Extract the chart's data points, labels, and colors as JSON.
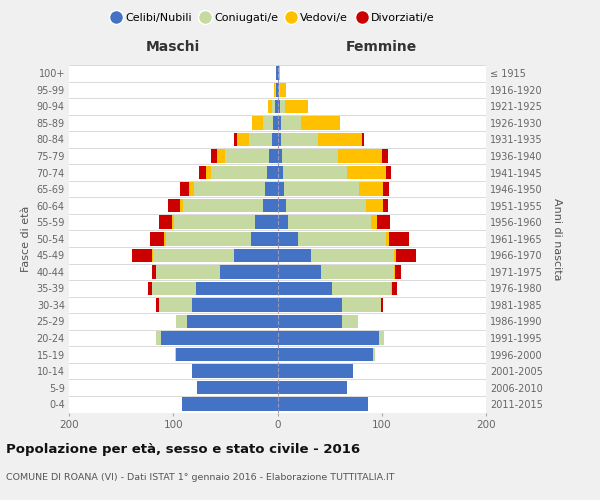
{
  "age_groups": [
    "100+",
    "95-99",
    "90-94",
    "85-89",
    "80-84",
    "75-79",
    "70-74",
    "65-69",
    "60-64",
    "55-59",
    "50-54",
    "45-49",
    "40-44",
    "35-39",
    "30-34",
    "25-29",
    "20-24",
    "15-19",
    "10-14",
    "5-9",
    "0-4"
  ],
  "birth_years": [
    "≤ 1915",
    "1916-1920",
    "1921-1925",
    "1926-1930",
    "1931-1935",
    "1936-1940",
    "1941-1945",
    "1946-1950",
    "1951-1955",
    "1956-1960",
    "1961-1965",
    "1966-1970",
    "1971-1975",
    "1976-1980",
    "1981-1985",
    "1986-1990",
    "1991-1995",
    "1996-2000",
    "2001-2005",
    "2006-2010",
    "2011-2015"
  ],
  "maschi_celibi": [
    1,
    1,
    2,
    4,
    5,
    8,
    10,
    12,
    14,
    22,
    25,
    42,
    55,
    78,
    82,
    87,
    112,
    97,
    82,
    77,
    92
  ],
  "maschi_coniugati": [
    0,
    1,
    3,
    10,
    22,
    42,
    54,
    68,
    77,
    77,
    82,
    77,
    62,
    42,
    32,
    10,
    5,
    1,
    0,
    0,
    0
  ],
  "maschi_vedovi": [
    0,
    1,
    4,
    10,
    12,
    8,
    5,
    5,
    3,
    2,
    2,
    1,
    0,
    0,
    0,
    0,
    0,
    0,
    0,
    0,
    0
  ],
  "maschi_divorziati": [
    0,
    0,
    0,
    0,
    3,
    6,
    6,
    9,
    11,
    13,
    13,
    20,
    3,
    4,
    3,
    0,
    0,
    0,
    0,
    0,
    0
  ],
  "femmine_nubili": [
    1,
    1,
    2,
    3,
    3,
    4,
    5,
    6,
    8,
    10,
    20,
    32,
    42,
    52,
    62,
    62,
    97,
    92,
    72,
    67,
    87
  ],
  "femmine_coniugate": [
    0,
    1,
    5,
    20,
    36,
    54,
    62,
    72,
    77,
    80,
    84,
    80,
    70,
    57,
    37,
    15,
    5,
    2,
    0,
    0,
    0
  ],
  "femmine_vedove": [
    1,
    6,
    22,
    37,
    42,
    42,
    37,
    23,
    16,
    5,
    3,
    2,
    1,
    1,
    0,
    0,
    0,
    0,
    0,
    0,
    0
  ],
  "femmine_divorziate": [
    0,
    0,
    0,
    0,
    2,
    6,
    5,
    6,
    5,
    13,
    19,
    19,
    5,
    5,
    2,
    0,
    0,
    0,
    0,
    0,
    0
  ],
  "colors": {
    "celibi": "#4472c4",
    "coniugati": "#c5d9a0",
    "vedovi": "#ffc000",
    "divorziati": "#cc0000"
  },
  "legend_labels": [
    "Celibi/Nubili",
    "Coniugati/e",
    "Vedovi/e",
    "Divorziati/e"
  ],
  "label_maschi": "Maschi",
  "label_femmine": "Femmine",
  "ylabel_left": "Fasce di età",
  "ylabel_right": "Anni di nascita",
  "title": "Popolazione per età, sesso e stato civile - 2016",
  "subtitle": "COMUNE DI ROANA (VI) - Dati ISTAT 1° gennaio 2016 - Elaborazione TUTTITALIA.IT",
  "xlim": 200,
  "bg_color": "#f0f0f0",
  "plot_bg": "#ffffff",
  "grid_color": "#cccccc"
}
